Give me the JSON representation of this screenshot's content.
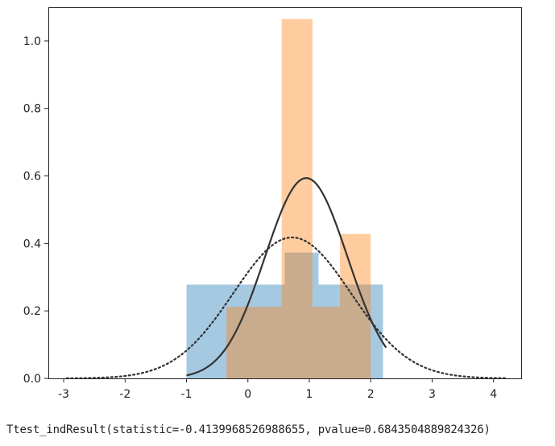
{
  "chart_data": {
    "type": "histogram",
    "xlim": [
      -3.25,
      4.45
    ],
    "ylim": [
      0,
      1.1
    ],
    "xticks": [
      -3,
      -2,
      -1,
      0,
      1,
      2,
      3,
      4
    ],
    "yticks": [
      0.0,
      0.2,
      0.4,
      0.6,
      0.8,
      1.0
    ],
    "colors": {
      "blue": "#1f77b4",
      "orange": "#ff7f0e",
      "curve": "#333333",
      "axes": "#222222"
    },
    "bar_alpha": 0.4,
    "histograms": [
      {
        "color": "blue",
        "bins": [
          {
            "x0": -1.0,
            "x1": 0.6,
            "height": 0.278
          },
          {
            "x0": 0.6,
            "x1": 1.15,
            "height": 0.373
          },
          {
            "x0": 1.15,
            "x1": 2.2,
            "height": 0.278
          }
        ]
      },
      {
        "color": "orange",
        "bins": [
          {
            "x0": -0.35,
            "x1": 0.55,
            "height": 0.212
          },
          {
            "x0": 0.55,
            "x1": 1.05,
            "height": 1.065
          },
          {
            "x0": 1.05,
            "x1": 1.5,
            "height": 0.212
          },
          {
            "x0": 1.5,
            "x1": 2.0,
            "height": 0.428
          },
          {
            "x0": 2.0,
            "x1": 2.0,
            "height": 0
          }
        ]
      }
    ],
    "curves": [
      {
        "style": "solid",
        "mean": 0.95,
        "sd": 0.672,
        "x_range": [
          -1.0,
          2.25
        ]
      },
      {
        "style": "dotted",
        "mean": 0.72,
        "sd": 0.955,
        "x_range": [
          -2.95,
          4.2
        ]
      }
    ]
  },
  "result_text": "Ttest_indResult(statistic=-0.4139968526988655, pvalue=0.6843504889824326)"
}
